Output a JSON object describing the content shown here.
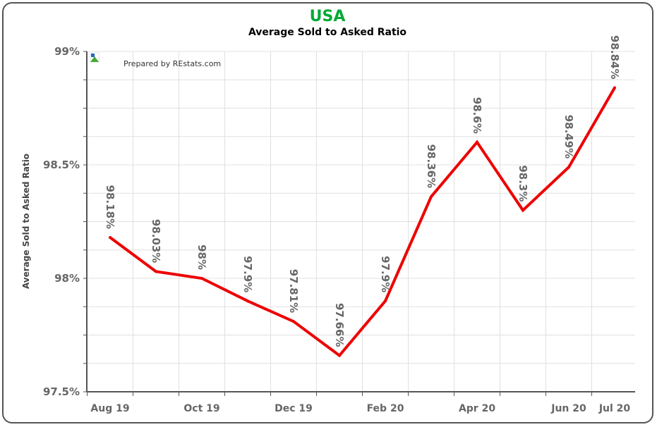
{
  "chart_data": {
    "type": "line",
    "title": "USA",
    "subtitle": "Average Sold to Asked Ratio",
    "ylabel": "Average Sold to Asked Ratio",
    "credit": "Prepared by REstats.com",
    "ylim": [
      97.5,
      99
    ],
    "yticks": [
      {
        "value": 97.5,
        "label": "97.5%"
      },
      {
        "value": 98,
        "label": "98%"
      },
      {
        "value": 98.5,
        "label": "98.5%"
      },
      {
        "value": 99,
        "label": "99%"
      }
    ],
    "xtick_labels": [
      {
        "index": 0,
        "label": "Aug 19"
      },
      {
        "index": 2,
        "label": "Oct 19"
      },
      {
        "index": 4,
        "label": "Dec 19"
      },
      {
        "index": 6,
        "label": "Feb 20"
      },
      {
        "index": 8,
        "label": "Apr 20"
      },
      {
        "index": 10,
        "label": "Jun 20"
      },
      {
        "index": 11,
        "label": "Jul 20"
      }
    ],
    "values": [
      98.18,
      98.03,
      98.0,
      97.9,
      97.81,
      97.66,
      97.9,
      98.36,
      98.6,
      98.3,
      98.49,
      98.84
    ],
    "data_labels": [
      "98.18%",
      "98.03%",
      "98%",
      "97.9%",
      "97.81%",
      "97.66%",
      "97.9%",
      "98.36%",
      "98.6%",
      "98.3%",
      "98.49%",
      "98.84%"
    ],
    "grid": true,
    "colors": {
      "line": "#ee0000",
      "title": "#00aa33",
      "grid": "#e0e0e0",
      "axis": "#555555"
    }
  },
  "logo": {
    "icon": "restats-logo-icon"
  }
}
